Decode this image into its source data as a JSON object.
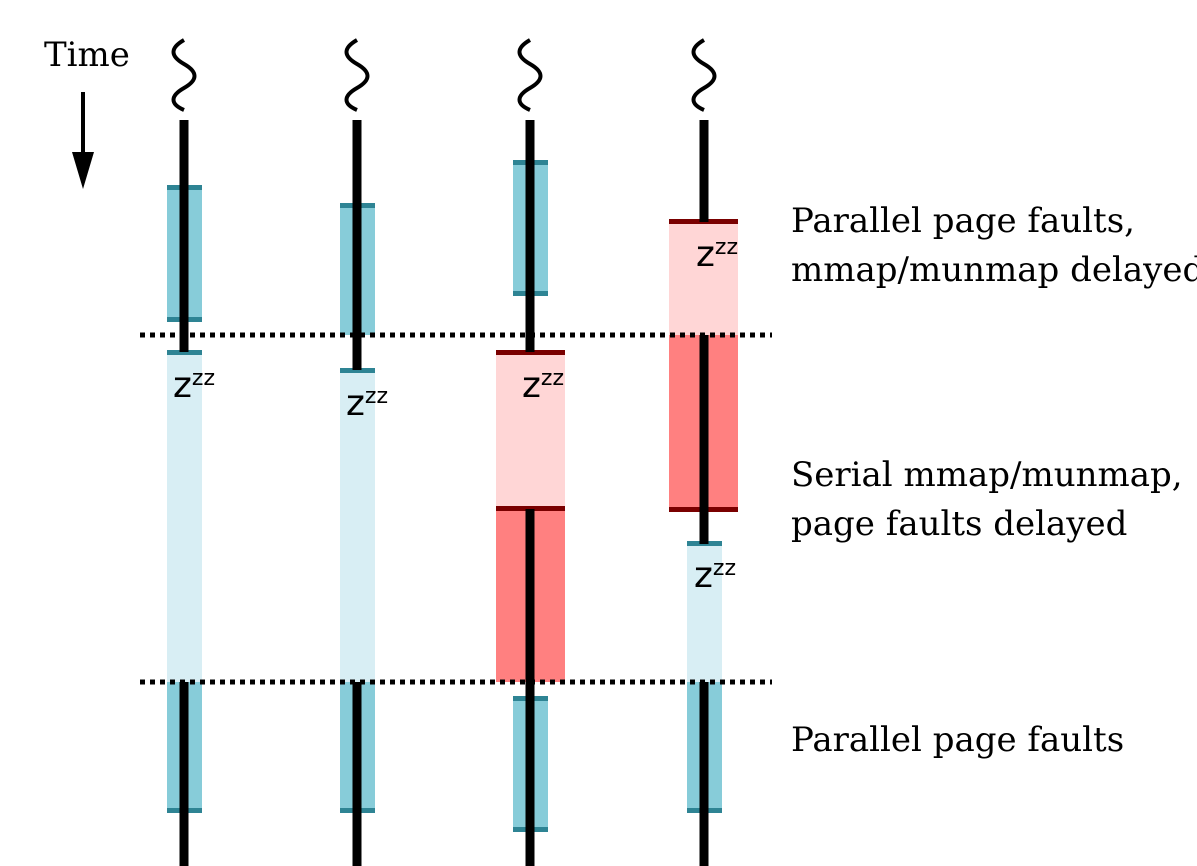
{
  "time_label": "Time",
  "phase_labels": [
    {
      "lines": [
        "Parallel page faults,",
        "mmap/munmap delayed"
      ]
    },
    {
      "lines": [
        "Serial mmap/munmap,",
        "page faults delayed"
      ]
    },
    {
      "lines": [
        "Parallel page faults"
      ]
    }
  ],
  "sleep_marker": {
    "main": "z",
    "small": "zz"
  },
  "colors": {
    "thread_line": "#000000",
    "page_fault_active": "#87CCD9",
    "page_fault_waiting": "#D8EEF4",
    "page_fault_cap": "#2E8494",
    "mmap_active": "#FF8080",
    "mmap_waiting": "#FFD6D6",
    "mmap_cap": "#7A0000",
    "phase_divider": "#000000"
  }
}
